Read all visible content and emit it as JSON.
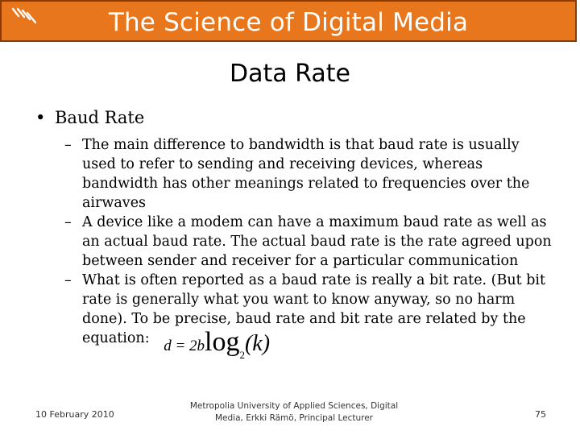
{
  "header": {
    "title": "The Science of Digital Media",
    "logo_icon": "stripes-logo-icon",
    "color": "#e8761c"
  },
  "slide": {
    "title": "Data Rate",
    "bullet": "Baud Rate",
    "bullet_symbol": "•",
    "dash_symbol": "–",
    "items": [
      "The main difference to bandwidth is that baud rate is usually used to refer to sending and receiving devices, whereas bandwidth has other meanings related to frequencies over the airwaves",
      "A device like a modem can have a maximum baud rate as well as an actual baud rate. The actual baud rate is the rate agreed upon between sender and receiver for a particular communication",
      "What is often reported as a baud rate is really a bit rate. (But bit rate is generally what you want to know anyway, so no harm done). To be precise, baud rate and bit rate are related by the equation:"
    ],
    "equation": {
      "lhs": "d = 2b",
      "log": "log",
      "base": "2",
      "arg": "(k)"
    }
  },
  "footer": {
    "date": "10 February 2010",
    "center_line1": "Metropolia University of Applied Sciences,  Digital",
    "center_line2": "Media, Erkki Rämö, Principal Lecturer",
    "page": "75"
  }
}
